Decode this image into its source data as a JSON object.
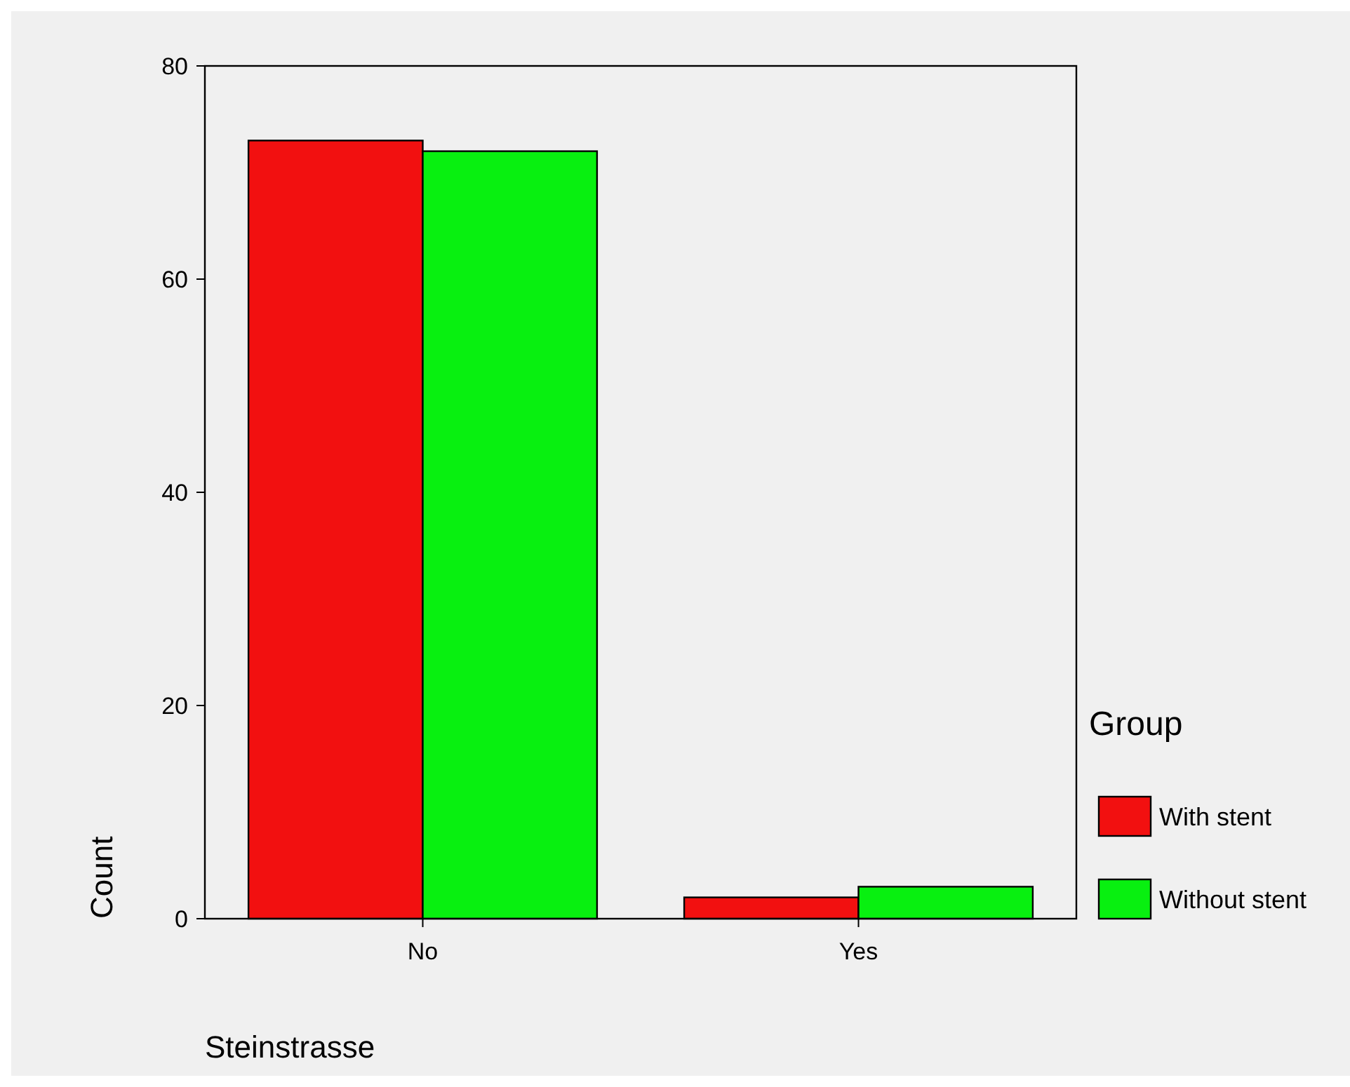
{
  "chart_data": {
    "type": "bar",
    "xlabel": "Steinstrasse",
    "ylabel": "Count",
    "legend_title": "Group",
    "categories": [
      "No",
      "Yes"
    ],
    "series": [
      {
        "name": "With stent",
        "color": "#f21010",
        "values": [
          73,
          2
        ]
      },
      {
        "name": "Without stent",
        "color": "#08f010",
        "values": [
          72,
          3
        ]
      }
    ],
    "ylim": [
      0,
      80
    ],
    "yticks": [
      0,
      20,
      40,
      60,
      80
    ],
    "grid": false,
    "legend": "right"
  }
}
